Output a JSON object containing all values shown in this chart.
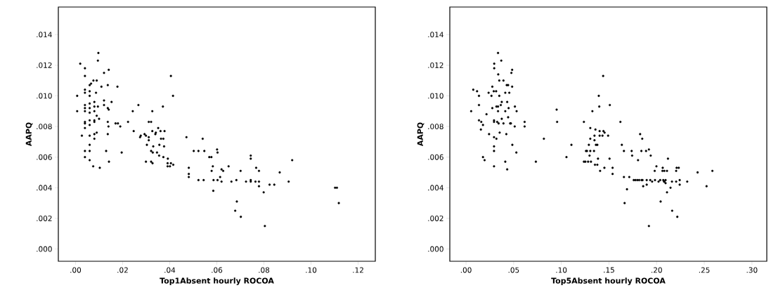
{
  "chart_data": [
    {
      "type": "scatter",
      "xlabel": "Top1Absent hourly ROCOA",
      "ylabel": "AAPQ",
      "color": "#000000",
      "marker": "circle",
      "xlim": [
        -0.0073,
        0.1273
      ],
      "ylim": [
        -0.0008,
        0.0158
      ],
      "xticks": [
        {
          "value": 0,
          "label": ".00"
        },
        {
          "value": 0.02,
          "label": ".02"
        },
        {
          "value": 0.04,
          "label": ".04"
        },
        {
          "value": 0.06,
          "label": ".06"
        },
        {
          "value": 0.08,
          "label": ".08"
        },
        {
          "value": 0.1,
          "label": ".10"
        },
        {
          "value": 0.12,
          "label": ".12"
        }
      ],
      "yticks": [
        {
          "value": 0,
          "label": ".000"
        },
        {
          "value": 0.002,
          "label": ".002"
        },
        {
          "value": 0.004,
          "label": ".004"
        },
        {
          "value": 0.006,
          "label": ".006"
        },
        {
          "value": 0.008,
          "label": ".008"
        },
        {
          "value": 0.01,
          "label": ".010"
        },
        {
          "value": 0.012,
          "label": ".012"
        },
        {
          "value": 0.014,
          "label": ".014"
        }
      ],
      "x": [
        0.0007,
        0.0007,
        0.002,
        0.0027,
        0.004,
        0.004,
        0.004,
        0.004,
        0.004,
        0.004,
        0.004,
        0.004,
        0.004,
        0.004,
        0.004,
        0.004,
        0.006,
        0.006,
        0.006,
        0.006,
        0.006,
        0.006,
        0.006,
        0.006,
        0.006,
        0.006,
        0.006,
        0.006,
        0.0066,
        0.0076,
        0.009,
        0.0075,
        0.008,
        0.008,
        0.008,
        0.008,
        0.008,
        0.008,
        0.008,
        0.0087,
        0.009,
        0.009,
        0.0095,
        0.0097,
        0.0095,
        0.01,
        0.0103,
        0.011,
        0.0121,
        0.0121,
        0.0121,
        0.013,
        0.0137,
        0.0137,
        0.0137,
        0.0137,
        0.0141,
        0.0141,
        0.014,
        0.0142,
        0.0153,
        0.017,
        0.018,
        0.0178,
        0.019,
        0.0196,
        0.0223,
        0.0243,
        0.0247,
        0.0267,
        0.0277,
        0.0274,
        0.0293,
        0.0299,
        0.0311,
        0.0311,
        0.0311,
        0.0321,
        0.0326,
        0.0326,
        0.0341,
        0.0339,
        0.0303,
        0.0299,
        0.0321,
        0.0327,
        0.0321,
        0.0328,
        0.033,
        0.0346,
        0.0351,
        0.0361,
        0.0371,
        0.0378,
        0.0363,
        0.0373,
        0.0356,
        0.0355,
        0.0373,
        0.0376,
        0.0392,
        0.0405,
        0.0414,
        0.0391,
        0.0391,
        0.0401,
        0.0405,
        0.0415,
        0.0471,
        0.0502,
        0.0522,
        0.054,
        0.0547,
        0.0481,
        0.0481,
        0.0481,
        0.0522,
        0.0544,
        0.0568,
        0.0577,
        0.0583,
        0.0578,
        0.0586,
        0.0585,
        0.0601,
        0.0603,
        0.0603,
        0.0614,
        0.062,
        0.0627,
        0.062,
        0.065,
        0.0662,
        0.0683,
        0.0701,
        0.0685,
        0.0678,
        0.0702,
        0.0724,
        0.0744,
        0.0744,
        0.0744,
        0.0744,
        0.0764,
        0.0767,
        0.0779,
        0.0779,
        0.0779,
        0.0799,
        0.0804,
        0.0824,
        0.0844,
        0.0867,
        0.0905,
        0.092,
        0.1102,
        0.111,
        0.1118
      ],
      "values": [
        0.009,
        0.01,
        0.0121,
        0.0074,
        0.0118,
        0.0113,
        0.0104,
        0.0102,
        0.0094,
        0.0092,
        0.009,
        0.0083,
        0.0082,
        0.0079,
        0.0064,
        0.006,
        0.0107,
        0.0103,
        0.01,
        0.0095,
        0.0092,
        0.0089,
        0.0084,
        0.0081,
        0.0074,
        0.0068,
        0.0064,
        0.0058,
        0.0108,
        0.011,
        0.011,
        0.0054,
        0.0096,
        0.0093,
        0.009,
        0.0084,
        0.0083,
        0.0075,
        0.0072,
        0.0102,
        0.0087,
        0.0076,
        0.0093,
        0.0128,
        0.0123,
        0.0085,
        0.0053,
        0.0106,
        0.0097,
        0.0094,
        0.0115,
        0.0064,
        0.0107,
        0.0092,
        0.0083,
        0.0075,
        0.0117,
        0.0091,
        0.008,
        0.0057,
        0.0096,
        0.0082,
        0.0082,
        0.0106,
        0.008,
        0.0063,
        0.0083,
        0.009,
        0.0077,
        0.0094,
        0.0074,
        0.0073,
        0.0075,
        0.0074,
        0.0073,
        0.0071,
        0.0083,
        0.0083,
        0.009,
        0.0077,
        0.0076,
        0.0075,
        0.0068,
        0.0057,
        0.0057,
        0.0056,
        0.0064,
        0.0063,
        0.0067,
        0.0063,
        0.0079,
        0.0077,
        0.0093,
        0.0077,
        0.0072,
        0.0072,
        0.0068,
        0.0061,
        0.006,
        0.0067,
        0.0059,
        0.0113,
        0.01,
        0.0056,
        0.0054,
        0.0054,
        0.0056,
        0.0055,
        0.0073,
        0.0064,
        0.0064,
        0.0072,
        0.0064,
        0.0053,
        0.0049,
        0.0047,
        0.0045,
        0.0045,
        0.006,
        0.006,
        0.0054,
        0.0051,
        0.0045,
        0.0038,
        0.0065,
        0.0063,
        0.0045,
        0.0047,
        0.0052,
        0.0051,
        0.0044,
        0.0054,
        0.0044,
        0.0045,
        0.0051,
        0.0031,
        0.0025,
        0.0021,
        0.0044,
        0.0061,
        0.0059,
        0.0045,
        0.0044,
        0.0044,
        0.0053,
        0.0051,
        0.0044,
        0.0041,
        0.0037,
        0.0015,
        0.0042,
        0.0042,
        0.005,
        0.0044,
        0.0058,
        0.004,
        0.004,
        0.003
      ]
    },
    {
      "type": "scatter",
      "xlabel": "Top5Absent hourly ROCOA",
      "ylabel": "AAPQ",
      "color": "#000000",
      "marker": "circle",
      "xlim": [
        -0.017,
        0.3156
      ],
      "ylim": [
        -0.0008,
        0.0158
      ],
      "xticks": [
        {
          "value": 0,
          "label": ".00"
        },
        {
          "value": 0.05,
          "label": ".05"
        },
        {
          "value": 0.1,
          "label": ".10"
        },
        {
          "value": 0.15,
          "label": ".15"
        },
        {
          "value": 0.2,
          "label": ".20"
        },
        {
          "value": 0.25,
          "label": ".25"
        },
        {
          "value": 0.3,
          "label": ".30"
        }
      ],
      "yticks": [
        {
          "value": 0,
          "label": ".000"
        },
        {
          "value": 0.002,
          "label": ".002"
        },
        {
          "value": 0.004,
          "label": ".004"
        },
        {
          "value": 0.006,
          "label": ".006"
        },
        {
          "value": 0.008,
          "label": ".008"
        },
        {
          "value": 0.01,
          "label": ".010"
        },
        {
          "value": 0.012,
          "label": ".012"
        },
        {
          "value": 0.014,
          "label": ".014"
        }
      ],
      "x": [
        0.0054,
        0.0076,
        0.0116,
        0.0136,
        0.0136,
        0.0136,
        0.016,
        0.0156,
        0.0178,
        0.0178,
        0.0195,
        0.0215,
        0.0237,
        0.0242,
        0.0267,
        0.0276,
        0.0276,
        0.0291,
        0.0316,
        0.0294,
        0.0294,
        0.0294,
        0.0319,
        0.0294,
        0.0294,
        0.0294,
        0.0319,
        0.0336,
        0.0336,
        0.0327,
        0.0342,
        0.0338,
        0.0349,
        0.0393,
        0.0349,
        0.0353,
        0.0365,
        0.0375,
        0.0375,
        0.0393,
        0.0412,
        0.0412,
        0.0412,
        0.0423,
        0.0432,
        0.0432,
        0.0427,
        0.0442,
        0.0442,
        0.0447,
        0.0454,
        0.0463,
        0.0471,
        0.0484,
        0.0486,
        0.0511,
        0.0513,
        0.0528,
        0.0531,
        0.0615,
        0.0615,
        0.0733,
        0.0817,
        0.0336,
        0.037,
        0.0296,
        0.0296,
        0.0484,
        0.0476,
        0.1439,
        0.1393,
        0.1398,
        0.1509,
        0.1326,
        0.0951,
        0.0956,
        0.1106,
        0.1054,
        0.1237,
        0.162,
        0.1304,
        0.1358,
        0.1304,
        0.1348,
        0.1348,
        0.1402,
        0.1442,
        0.1454,
        0.1402,
        0.1432,
        0.1491,
        0.1289,
        0.1363,
        0.1378,
        0.1259,
        0.1269,
        0.1304,
        0.1343,
        0.1296,
        0.1237,
        0.1252,
        0.1281,
        0.1311,
        0.1353,
        0.1378,
        0.1385,
        0.1407,
        0.1452,
        0.1506,
        0.1538,
        0.1538,
        0.1635,
        0.1657,
        0.1657,
        0.1664,
        0.1689,
        0.1713,
        0.1738,
        0.1743,
        0.176,
        0.1778,
        0.1798,
        0.1817,
        0.1842,
        0.1852,
        0.1805,
        0.1827,
        0.1849,
        0.184,
        0.1859,
        0.1889,
        0.1919,
        0.1896,
        0.1896,
        0.1933,
        0.1953,
        0.1983,
        0.1919,
        0.1938,
        0.198,
        0.1998,
        0.202,
        0.2037,
        0.2042,
        0.2064,
        0.2061,
        0.2081,
        0.207,
        0.2078,
        0.2094,
        0.2081,
        0.2094,
        0.2109,
        0.2109,
        0.2119,
        0.2146,
        0.2161,
        0.2163,
        0.2205,
        0.2205,
        0.221,
        0.2232,
        0.2217,
        0.2242,
        0.2242,
        0.2321,
        0.243,
        0.2524,
        0.2585
      ],
      "values": [
        0.009,
        0.0104,
        0.0103,
        0.01,
        0.0094,
        0.0084,
        0.0083,
        0.0078,
        0.0081,
        0.006,
        0.0058,
        0.0088,
        0.0102,
        0.0075,
        0.01,
        0.0106,
        0.0092,
        0.0103,
        0.0103,
        0.0084,
        0.0073,
        0.0064,
        0.0072,
        0.0067,
        0.0054,
        0.0083,
        0.0093,
        0.0093,
        0.009,
        0.0083,
        0.0082,
        0.0114,
        0.011,
        0.011,
        0.01,
        0.0076,
        0.0094,
        0.0096,
        0.0085,
        0.0082,
        0.0102,
        0.009,
        0.0057,
        0.0075,
        0.0096,
        0.0052,
        0.0107,
        0.0107,
        0.0086,
        0.0092,
        0.0102,
        0.0082,
        0.0082,
        0.0106,
        0.0068,
        0.008,
        0.0093,
        0.0063,
        0.009,
        0.0083,
        0.008,
        0.0057,
        0.0072,
        0.0128,
        0.0123,
        0.0121,
        0.0118,
        0.0117,
        0.0115,
        0.0113,
        0.01,
        0.0093,
        0.0094,
        0.009,
        0.0091,
        0.0083,
        0.0068,
        0.006,
        0.0083,
        0.0083,
        0.0079,
        0.0078,
        0.0072,
        0.0074,
        0.0071,
        0.0077,
        0.0077,
        0.0076,
        0.0074,
        0.0074,
        0.0074,
        0.0068,
        0.0068,
        0.0068,
        0.0064,
        0.0064,
        0.0064,
        0.0064,
        0.0061,
        0.0057,
        0.0057,
        0.0057,
        0.0057,
        0.0055,
        0.0055,
        0.0059,
        0.0051,
        0.0053,
        0.0059,
        0.0053,
        0.0049,
        0.0068,
        0.0064,
        0.0047,
        0.003,
        0.0039,
        0.0047,
        0.0064,
        0.0061,
        0.0045,
        0.0045,
        0.0045,
        0.0045,
        0.0045,
        0.0045,
        0.0058,
        0.0075,
        0.0072,
        0.0064,
        0.0041,
        0.0064,
        0.0065,
        0.0042,
        0.0045,
        0.0045,
        0.0044,
        0.0045,
        0.0015,
        0.0061,
        0.0051,
        0.0054,
        0.0044,
        0.0045,
        0.0031,
        0.0053,
        0.0051,
        0.0051,
        0.0045,
        0.0044,
        0.0045,
        0.0044,
        0.0043,
        0.0051,
        0.0037,
        0.0059,
        0.004,
        0.0044,
        0.0025,
        0.0044,
        0.0051,
        0.0053,
        0.0053,
        0.0021,
        0.0042,
        0.0045,
        0.0044,
        0.005,
        0.0041,
        0.0051
      ]
    }
  ]
}
